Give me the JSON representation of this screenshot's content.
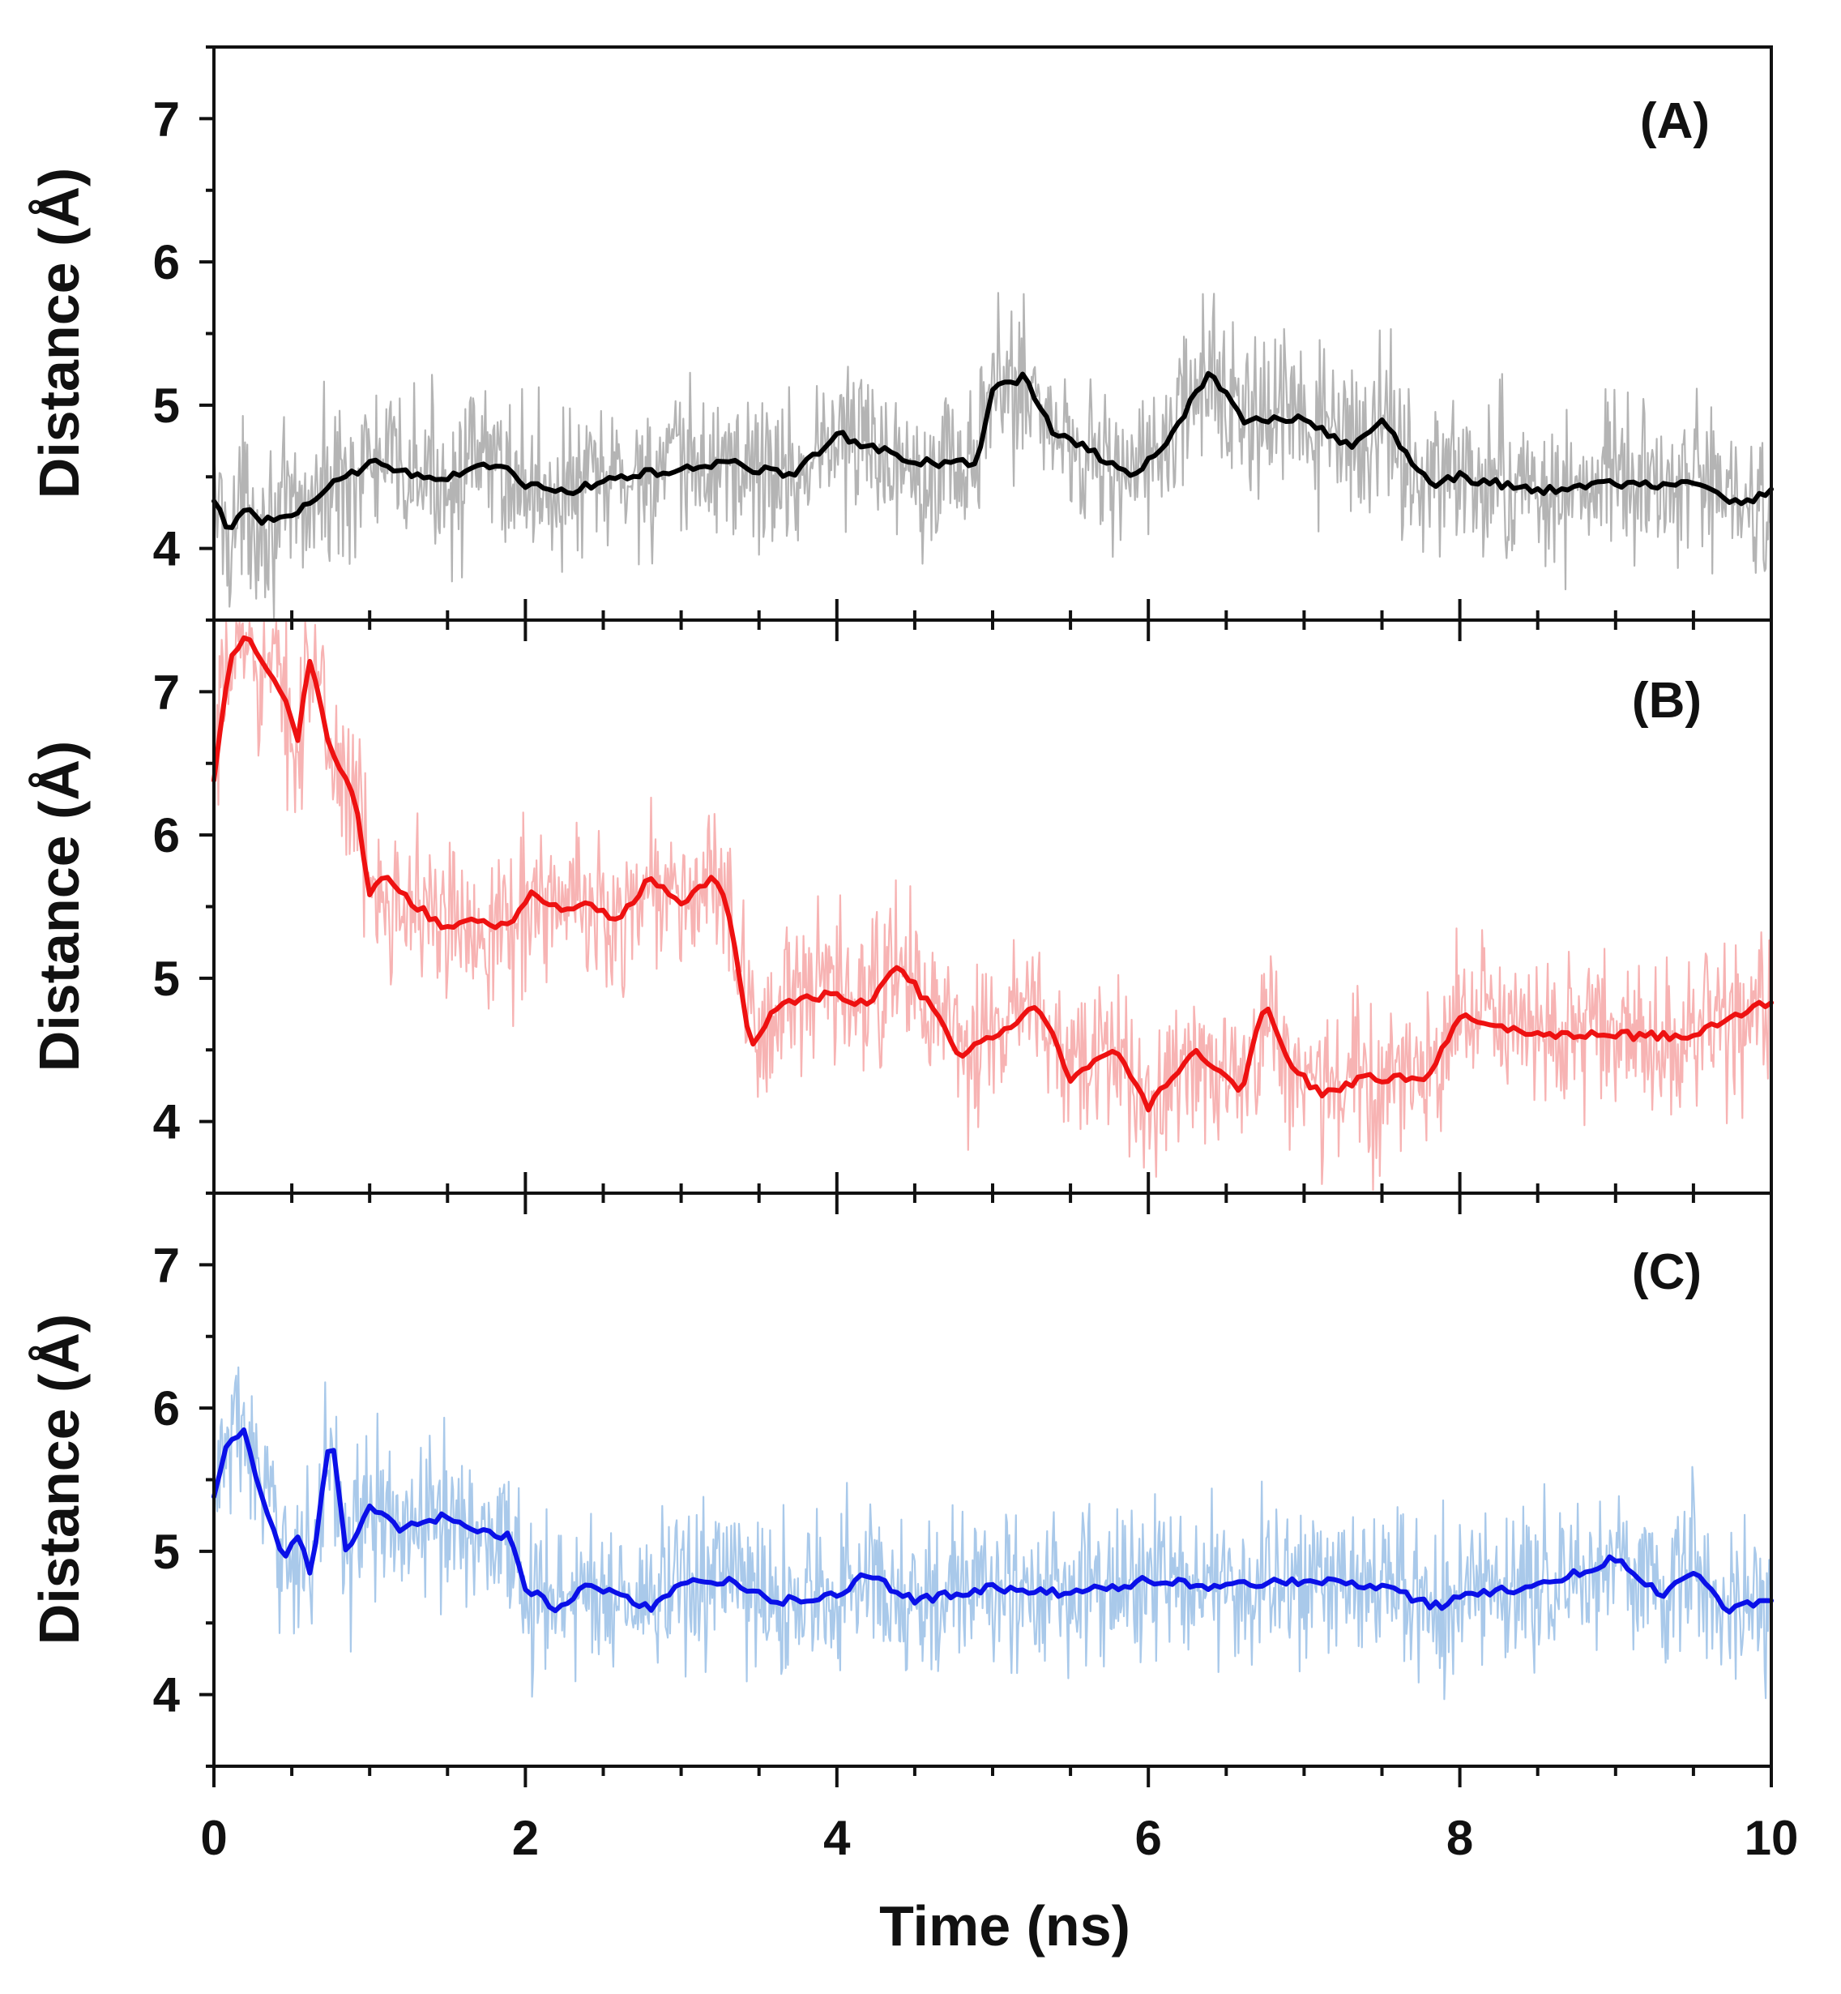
{
  "chart_data": {
    "type": "line",
    "xlabel": "Time (ns)",
    "xlim": [
      0,
      10
    ],
    "x_ticks": [
      0,
      2,
      4,
      6,
      8,
      10
    ],
    "x_tick_labels": [
      "0",
      "2",
      "4",
      "6",
      "8",
      "10"
    ],
    "panels": [
      {
        "label": "(A)",
        "ylabel": "Distance (Å)",
        "ylim": [
          3.5,
          7.5
        ],
        "y_ticks": [
          4,
          5,
          6,
          7
        ],
        "y_tick_labels": [
          "4",
          "5",
          "6",
          "7"
        ],
        "series": [
          {
            "name": "raw",
            "color": "#b4b4b4",
            "noise": 0.55,
            "x": [
              0,
              0.1,
              0.2,
              0.3,
              0.5,
              0.7,
              1.0,
              1.3,
              1.5,
              1.8,
              2.0,
              2.3,
              2.6,
              3.0,
              3.3,
              3.7,
              4.0,
              4.5,
              4.9,
              5.0,
              5.2,
              5.4,
              5.6,
              5.9,
              6.1,
              6.4,
              6.6,
              6.8,
              7.0,
              7.3,
              7.5,
              7.8,
              8.0,
              8.5,
              9.0,
              9.5,
              9.8,
              10.0
            ],
            "y": [
              4.35,
              4.1,
              4.3,
              4.2,
              4.2,
              4.4,
              4.6,
              4.5,
              4.5,
              4.6,
              4.45,
              4.4,
              4.5,
              4.55,
              4.6,
              4.5,
              4.8,
              4.6,
              4.6,
              5.1,
              5.2,
              4.8,
              4.7,
              4.5,
              4.7,
              5.25,
              4.9,
              4.9,
              4.9,
              4.7,
              4.9,
              4.45,
              4.5,
              4.4,
              4.45,
              4.45,
              4.3,
              4.4
            ]
          },
          {
            "name": "smoothed",
            "color": "#000000",
            "noise": 0,
            "x": [
              0,
              0.1,
              0.2,
              0.3,
              0.5,
              0.7,
              1.0,
              1.3,
              1.5,
              1.8,
              2.0,
              2.3,
              2.6,
              3.0,
              3.3,
              3.7,
              4.0,
              4.5,
              4.9,
              5.0,
              5.2,
              5.4,
              5.6,
              5.9,
              6.1,
              6.4,
              6.6,
              6.8,
              7.0,
              7.3,
              7.5,
              7.8,
              8.0,
              8.5,
              9.0,
              9.5,
              9.8,
              10.0
            ],
            "y": [
              4.35,
              4.1,
              4.3,
              4.2,
              4.2,
              4.4,
              4.6,
              4.5,
              4.5,
              4.6,
              4.45,
              4.4,
              4.5,
              4.55,
              4.6,
              4.5,
              4.8,
              4.6,
              4.6,
              5.1,
              5.2,
              4.8,
              4.7,
              4.5,
              4.7,
              5.25,
              4.9,
              4.9,
              4.9,
              4.7,
              4.9,
              4.45,
              4.5,
              4.4,
              4.45,
              4.45,
              4.3,
              4.4
            ]
          }
        ]
      },
      {
        "label": "(B)",
        "ylabel": "Distance (Å)",
        "ylim": [
          3.5,
          7.5
        ],
        "y_ticks": [
          4,
          5,
          6,
          7
        ],
        "y_tick_labels": [
          "4",
          "5",
          "6",
          "7"
        ],
        "series": [
          {
            "name": "raw",
            "color": "#f7b3b3",
            "noise": 0.55,
            "x": [
              0,
              0.1,
              0.2,
              0.3,
              0.45,
              0.55,
              0.6,
              0.75,
              0.9,
              1.0,
              1.1,
              1.3,
              1.5,
              1.7,
              1.9,
              2.05,
              2.2,
              2.4,
              2.6,
              2.8,
              3.0,
              3.2,
              3.3,
              3.45,
              3.6,
              3.8,
              4.0,
              4.2,
              4.4,
              4.6,
              4.8,
              5.0,
              5.3,
              5.5,
              5.8,
              6.0,
              6.3,
              6.6,
              6.75,
              6.9,
              7.1,
              7.4,
              7.8,
              8.0,
              8.5,
              9.0,
              9.5,
              10.0
            ],
            "y": [
              6.4,
              7.2,
              7.4,
              7.2,
              7.0,
              6.6,
              7.3,
              6.6,
              6.3,
              5.6,
              5.7,
              5.5,
              5.35,
              5.4,
              5.35,
              5.6,
              5.5,
              5.5,
              5.4,
              5.7,
              5.5,
              5.7,
              5.5,
              4.5,
              4.8,
              4.85,
              4.9,
              4.8,
              5.1,
              4.8,
              4.45,
              4.6,
              4.8,
              4.3,
              4.5,
              4.1,
              4.5,
              4.2,
              4.85,
              4.4,
              4.2,
              4.3,
              4.3,
              4.75,
              4.6,
              4.6,
              4.6,
              4.85
            ]
          },
          {
            "name": "smoothed",
            "color": "#ee1111",
            "noise": 0,
            "x": [
              0,
              0.1,
              0.2,
              0.3,
              0.45,
              0.55,
              0.6,
              0.75,
              0.9,
              1.0,
              1.1,
              1.3,
              1.5,
              1.7,
              1.9,
              2.05,
              2.2,
              2.4,
              2.6,
              2.8,
              3.0,
              3.2,
              3.3,
              3.45,
              3.6,
              3.8,
              4.0,
              4.2,
              4.4,
              4.6,
              4.8,
              5.0,
              5.3,
              5.5,
              5.8,
              6.0,
              6.3,
              6.6,
              6.75,
              6.9,
              7.1,
              7.4,
              7.8,
              8.0,
              8.5,
              9.0,
              9.5,
              10.0
            ],
            "y": [
              6.4,
              7.2,
              7.4,
              7.2,
              7.0,
              6.6,
              7.3,
              6.6,
              6.3,
              5.6,
              5.7,
              5.5,
              5.35,
              5.4,
              5.35,
              5.6,
              5.5,
              5.5,
              5.4,
              5.7,
              5.5,
              5.7,
              5.5,
              4.5,
              4.8,
              4.85,
              4.9,
              4.8,
              5.1,
              4.8,
              4.45,
              4.6,
              4.8,
              4.3,
              4.5,
              4.1,
              4.5,
              4.2,
              4.85,
              4.4,
              4.2,
              4.3,
              4.3,
              4.75,
              4.6,
              4.6,
              4.6,
              4.85
            ]
          }
        ]
      },
      {
        "label": "(C)",
        "ylabel": "Distance (Å)",
        "ylim": [
          3.5,
          7.5
        ],
        "y_ticks": [
          4,
          5,
          6,
          7
        ],
        "y_tick_labels": [
          "4",
          "5",
          "6",
          "7"
        ],
        "series": [
          {
            "name": "raw",
            "color": "#a9c9ea",
            "noise": 0.55,
            "x": [
              0,
              0.1,
              0.2,
              0.3,
              0.45,
              0.55,
              0.62,
              0.75,
              0.85,
              1.0,
              1.2,
              1.5,
              1.7,
              1.9,
              2.0,
              2.2,
              2.4,
              2.6,
              2.8,
              3.0,
              3.3,
              3.6,
              4.0,
              4.2,
              4.5,
              5.0,
              5.5,
              6.0,
              6.5,
              7.0,
              7.5,
              7.9,
              8.0,
              8.5,
              9.0,
              9.3,
              9.5,
              9.7,
              10.0
            ],
            "y": [
              5.4,
              5.8,
              5.85,
              5.4,
              4.95,
              5.1,
              4.8,
              5.85,
              5.0,
              5.3,
              5.15,
              5.25,
              5.15,
              5.1,
              4.75,
              4.6,
              4.75,
              4.7,
              4.6,
              4.8,
              4.8,
              4.65,
              4.7,
              4.85,
              4.65,
              4.75,
              4.7,
              4.8,
              4.75,
              4.8,
              4.75,
              4.6,
              4.7,
              4.75,
              4.95,
              4.7,
              4.85,
              4.6,
              4.65
            ]
          },
          {
            "name": "smoothed",
            "color": "#0a10e8",
            "noise": 0,
            "x": [
              0,
              0.1,
              0.2,
              0.3,
              0.45,
              0.55,
              0.62,
              0.75,
              0.85,
              1.0,
              1.2,
              1.5,
              1.7,
              1.9,
              2.0,
              2.2,
              2.4,
              2.6,
              2.8,
              3.0,
              3.3,
              3.6,
              4.0,
              4.2,
              4.5,
              5.0,
              5.5,
              6.0,
              6.5,
              7.0,
              7.5,
              7.9,
              8.0,
              8.5,
              9.0,
              9.3,
              9.5,
              9.7,
              10.0
            ],
            "y": [
              5.4,
              5.8,
              5.85,
              5.4,
              4.95,
              5.1,
              4.8,
              5.85,
              5.0,
              5.3,
              5.15,
              5.25,
              5.15,
              5.1,
              4.75,
              4.6,
              4.75,
              4.7,
              4.6,
              4.8,
              4.8,
              4.65,
              4.7,
              4.85,
              4.65,
              4.75,
              4.7,
              4.8,
              4.75,
              4.8,
              4.75,
              4.6,
              4.7,
              4.75,
              4.95,
              4.7,
              4.85,
              4.6,
              4.65
            ]
          }
        ]
      }
    ]
  }
}
